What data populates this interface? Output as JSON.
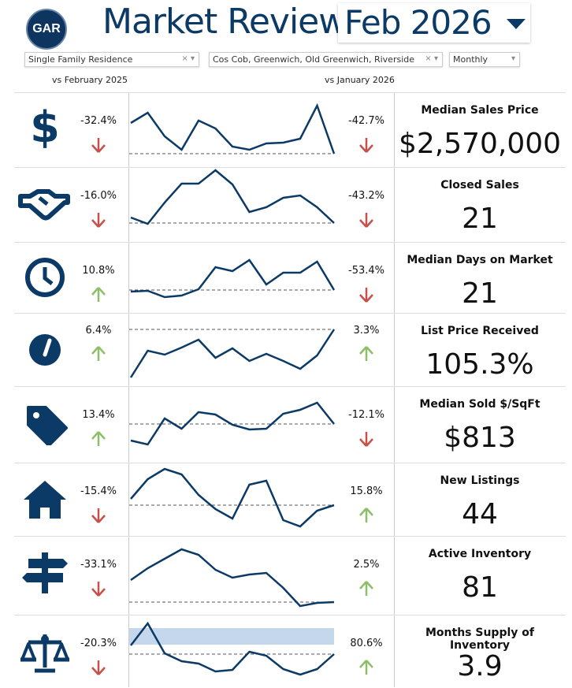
{
  "header": {
    "logo_text": "GAR",
    "title": "Market Review",
    "period": "Feb 2026"
  },
  "filters": {
    "property_type": "Single Family Residence",
    "areas": "Cos Cob, Greenwich, Old Greenwich, Riverside",
    "frequency": "Monthly"
  },
  "captions": {
    "yoy": "vs February 2025",
    "mom": "vs January 2026"
  },
  "colors": {
    "navy": "#0b3a66",
    "down": "#c9504a",
    "up": "#8cbf67",
    "band": "#c5d7ec"
  },
  "metrics": [
    {
      "icon": "dollar-icon",
      "label": "Median Sales Price",
      "value": "$2,570,000",
      "yoy": "-32.4%",
      "yoy_dir": "down",
      "mom": "-42.7%",
      "mom_dir": "down",
      "spark": [
        57,
        70,
        40,
        23,
        60,
        50,
        27,
        23,
        31,
        32,
        37,
        79,
        18
      ]
    },
    {
      "icon": "handshake-icon",
      "label": "Closed Sales",
      "value": "21",
      "yoy": "-16.0%",
      "yoy_dir": "down",
      "mom": "-43.2%",
      "mom_dir": "down",
      "spark": [
        32,
        24,
        51,
        75,
        75,
        92,
        74,
        39,
        45,
        57,
        60,
        45,
        25
      ]
    },
    {
      "icon": "clock-icon",
      "label": "Median Days on Market",
      "value": "21",
      "yoy": "10.8%",
      "yoy_dir": "up",
      "mom": "-53.4%",
      "mom_dir": "down",
      "spark": [
        28,
        29,
        21,
        23,
        31,
        59,
        54,
        68,
        37,
        52,
        52,
        66,
        30
      ]
    },
    {
      "icon": "gauge-icon",
      "label": "List Price Received",
      "value": "105.3%",
      "yoy": "6.4%",
      "yoy_dir": "up",
      "mom": "3.3%",
      "mom_dir": "up",
      "spark": [
        12,
        46,
        41,
        50,
        60,
        37,
        49,
        33,
        42,
        33,
        23,
        40,
        73
      ]
    },
    {
      "icon": "tag-icon",
      "label": "Median Sold $/SqFt",
      "value": "$813",
      "yoy": "13.4%",
      "yoy_dir": "up",
      "mom": "-12.1%",
      "mom_dir": "down",
      "spark": [
        29,
        24,
        57,
        44,
        65,
        62,
        49,
        43,
        44,
        63,
        68,
        77,
        50
      ]
    },
    {
      "icon": "house-icon",
      "label": "New Listings",
      "value": "44",
      "yoy": "-15.4%",
      "yoy_dir": "down",
      "mom": "15.8%",
      "mom_dir": "up",
      "spark": [
        48,
        73,
        86,
        79,
        53,
        35,
        23,
        66,
        71,
        21,
        13,
        33,
        40
      ]
    },
    {
      "icon": "signpost-icon",
      "label": "Active Inventory",
      "value": "81",
      "yoy": "-33.1%",
      "yoy_dir": "down",
      "mom": "2.5%",
      "mom_dir": "up",
      "spark": [
        45,
        60,
        72,
        84,
        77,
        58,
        48,
        52,
        54,
        35,
        12,
        16,
        17
      ]
    },
    {
      "icon": "scales-icon",
      "label": "Months Supply of Inventory",
      "value": "3.9",
      "yoy": "-20.3%",
      "yoy_dir": "down",
      "mom": "80.6%",
      "mom_dir": "up",
      "spark": [
        54,
        82,
        44,
        34,
        31,
        21,
        23,
        46,
        41,
        24,
        17,
        24,
        43
      ],
      "band": [
        55,
        76
      ]
    }
  ]
}
